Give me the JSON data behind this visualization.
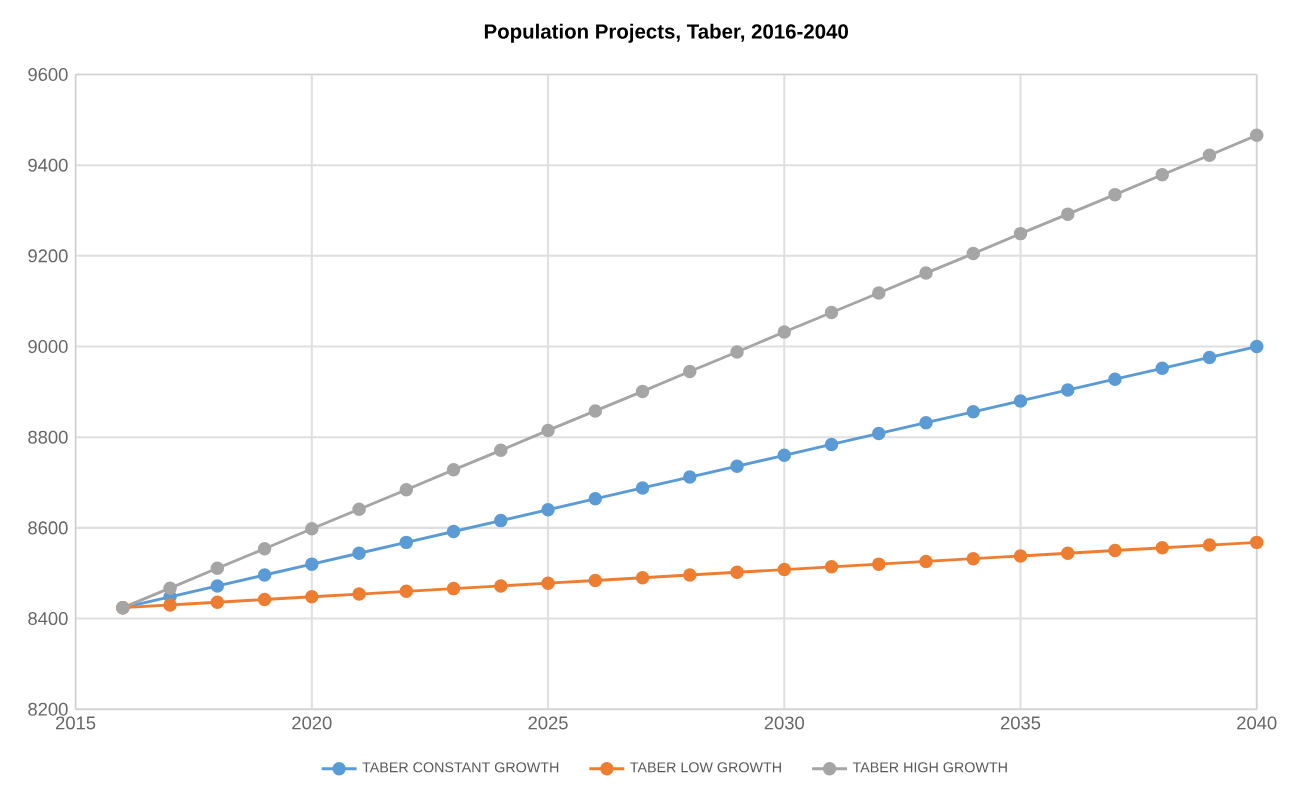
{
  "chart_data": {
    "type": "line",
    "title": "Population Projects, Taber, 2016-2040",
    "x": [
      2016,
      2017,
      2018,
      2019,
      2020,
      2021,
      2022,
      2023,
      2024,
      2025,
      2026,
      2027,
      2028,
      2029,
      2030,
      2031,
      2032,
      2033,
      2034,
      2035,
      2036,
      2037,
      2038,
      2039,
      2040
    ],
    "series": [
      {
        "name": "TABER CONSTANT GROWTH",
        "color": "#5b9bd5",
        "values": [
          8424,
          8448,
          8472,
          8496,
          8520,
          8544,
          8568,
          8592,
          8616,
          8640,
          8664,
          8688,
          8712,
          8736,
          8760,
          8784,
          8808,
          8832,
          8856,
          8880,
          8904,
          8928,
          8952,
          8976,
          9000
        ]
      },
      {
        "name": "TABER LOW GROWTH",
        "color": "#ed7d31",
        "values": [
          8424,
          8430,
          8436,
          8442,
          8448,
          8454,
          8460,
          8466,
          8472,
          8478,
          8484,
          8490,
          8496,
          8502,
          8508,
          8514,
          8520,
          8526,
          8532,
          8538,
          8544,
          8550,
          8556,
          8562,
          8568
        ]
      },
      {
        "name": "TABER HIGH GROWTH",
        "color": "#a5a5a5",
        "values": [
          8424,
          8467,
          8511,
          8554,
          8598,
          8641,
          8684,
          8728,
          8771,
          8815,
          8858,
          8901,
          8945,
          8988,
          9032,
          9075,
          9118,
          9162,
          9205,
          9249,
          9292,
          9335,
          9379,
          9422,
          9466
        ]
      }
    ],
    "xlim": [
      2015,
      2040
    ],
    "xticks": [
      2015,
      2020,
      2025,
      2030,
      2035,
      2040
    ],
    "ylim": [
      8200,
      9600
    ],
    "yticks": [
      8200,
      8400,
      8600,
      8800,
      9000,
      9200,
      9400,
      9600
    ],
    "grid": true,
    "legend": "bottom",
    "marker": "circle",
    "line_style": "solid"
  }
}
